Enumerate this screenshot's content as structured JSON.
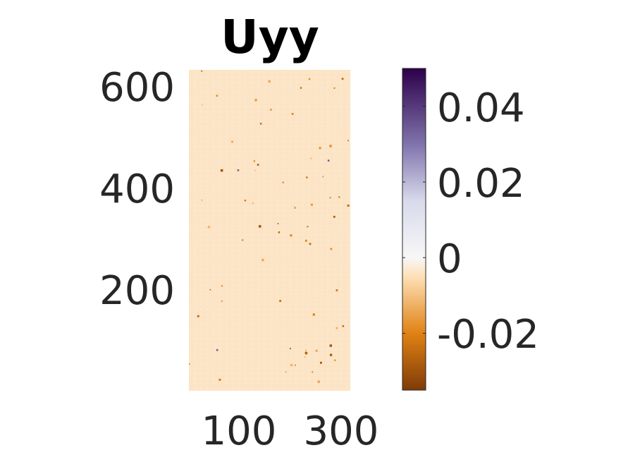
{
  "chart_data": {
    "type": "heatmap",
    "title": "Uyy",
    "xlabel": "",
    "ylabel": "",
    "xlim": [
      0,
      330
    ],
    "ylim": [
      0,
      630
    ],
    "xticks": [
      100,
      300
    ],
    "xtick_labels": [
      "100",
      "300"
    ],
    "yticks": [
      200,
      400,
      600
    ],
    "ytick_labels": [
      "200",
      "400",
      "600"
    ],
    "field_description": "near-uniform field close to zero with sparse small speckles",
    "typical_value": -0.003,
    "colorbar": {
      "range": [
        -0.035,
        0.05
      ],
      "ticks": [
        -0.02,
        0,
        0.02,
        0.04
      ],
      "tick_labels": [
        "-0.02",
        "0",
        "0.02",
        "0.04"
      ],
      "colormap": "PuOr",
      "color_stops": [
        {
          "value": -0.035,
          "color": "#7f3b08"
        },
        {
          "value": -0.02,
          "color": "#e08214"
        },
        {
          "value": -0.005,
          "color": "#fee0b6"
        },
        {
          "value": 0,
          "color": "#f7f7f7"
        },
        {
          "value": 0.015,
          "color": "#d8daeb"
        },
        {
          "value": 0.03,
          "color": "#8073ac"
        },
        {
          "value": 0.05,
          "color": "#2d004b"
        }
      ]
    },
    "grid": false
  }
}
